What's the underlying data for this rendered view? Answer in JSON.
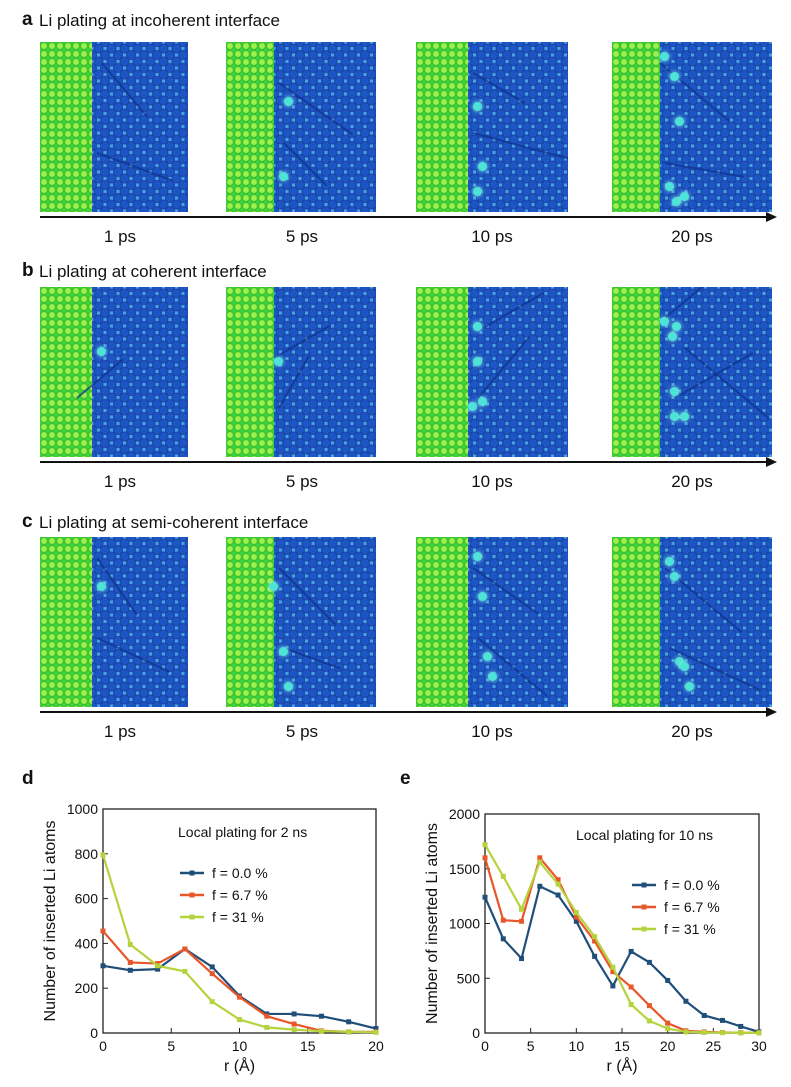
{
  "panels": [
    {
      "letter": "a",
      "title": "Li plating at incoherent interface"
    },
    {
      "letter": "b",
      "title": "Li plating at coherent interface"
    },
    {
      "letter": "c",
      "title": "Li plating at semi-coherent interface"
    }
  ],
  "time_labels": [
    "1 ps",
    "5 ps",
    "10 ps",
    "20 ps"
  ],
  "colors": {
    "metal": "#3fd63c",
    "electrolyte": "#4aa6ec",
    "atom": "#1d55c4",
    "inserted_li": "#4de3d7"
  },
  "chart_data": [
    {
      "panel": "d",
      "type": "line",
      "annotation": "Local plating for 2 ns",
      "xlabel": "r (Å)",
      "ylabel": "Number of inserted Li atoms",
      "xlim": [
        0,
        20
      ],
      "ylim": [
        0,
        1000
      ],
      "xticks": [
        0,
        5,
        10,
        15,
        20
      ],
      "yticks": [
        0,
        200,
        400,
        600,
        800,
        1000
      ],
      "x": [
        0,
        2,
        4,
        6,
        8,
        10,
        12,
        14,
        16,
        18,
        20
      ],
      "series": [
        {
          "name": "f = 0.0 %",
          "color": "#1f4e79",
          "values": [
            300,
            280,
            285,
            375,
            295,
            165,
            85,
            85,
            75,
            50,
            20
          ]
        },
        {
          "name": "f = 6.7 %",
          "color": "#e8572a",
          "values": [
            455,
            315,
            310,
            375,
            265,
            160,
            75,
            40,
            10,
            5,
            5
          ]
        },
        {
          "name": "f = 31 %",
          "color": "#b5d33d",
          "values": [
            795,
            395,
            300,
            275,
            140,
            60,
            25,
            15,
            8,
            5,
            3
          ]
        }
      ]
    },
    {
      "panel": "e",
      "type": "line",
      "annotation": "Local plating for 10 ns",
      "xlabel": "r (Å)",
      "ylabel": "Number of inserted Li atoms",
      "xlim": [
        0,
        30
      ],
      "ylim": [
        0,
        2000
      ],
      "xticks": [
        0,
        5,
        10,
        15,
        20,
        25,
        30
      ],
      "yticks": [
        0,
        500,
        1000,
        1500,
        2000
      ],
      "x": [
        0,
        2,
        4,
        6,
        8,
        10,
        12,
        14,
        16,
        18,
        20,
        22,
        24,
        26,
        28,
        30
      ],
      "series": [
        {
          "name": "f = 0.0 %",
          "color": "#1f4e79",
          "values": [
            1240,
            860,
            680,
            1340,
            1260,
            1020,
            700,
            430,
            745,
            645,
            480,
            290,
            160,
            115,
            60,
            10
          ]
        },
        {
          "name": "f = 6.7 %",
          "color": "#e8572a",
          "values": [
            1600,
            1030,
            1020,
            1600,
            1400,
            1060,
            840,
            560,
            420,
            250,
            90,
            20,
            10,
            5,
            3,
            2
          ]
        },
        {
          "name": "f = 31 %",
          "color": "#b5d33d",
          "values": [
            1720,
            1430,
            1130,
            1560,
            1360,
            1100,
            880,
            600,
            260,
            110,
            40,
            10,
            5,
            3,
            2,
            2
          ]
        }
      ]
    }
  ]
}
